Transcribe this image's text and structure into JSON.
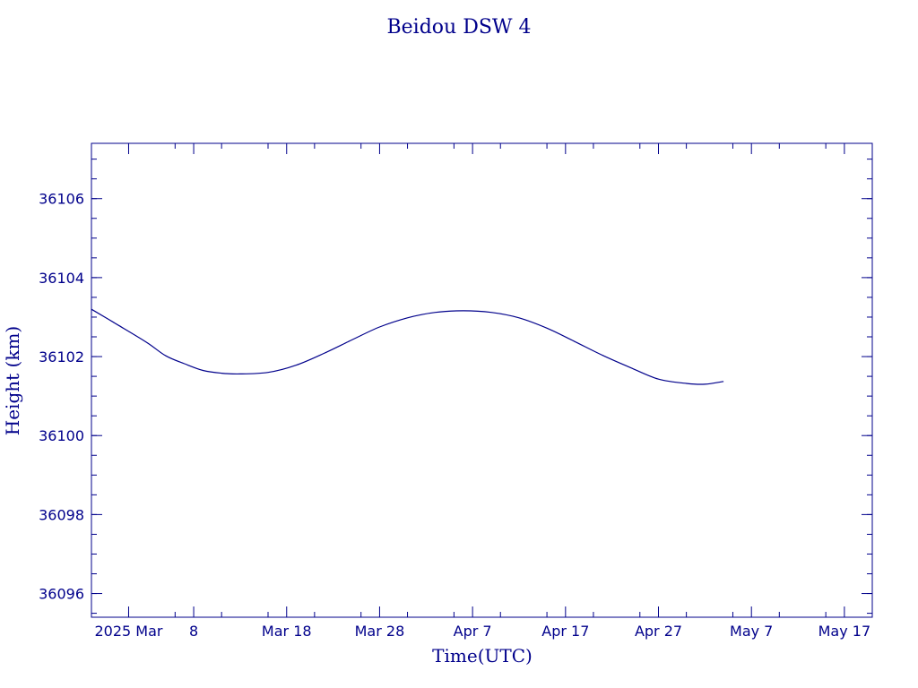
{
  "colors": {
    "ink": "#00008b",
    "background": "#ffffff"
  },
  "chart_data": {
    "type": "line",
    "title": "Beidou DSW 4",
    "xlabel": "Time(UTC)",
    "ylabel": "Height (km)",
    "xlim": [
      "2025-02-25",
      "2025-05-20"
    ],
    "ylim": [
      36095.4,
      36107.4
    ],
    "grid": false,
    "x_ticks": [
      {
        "date": "2025-03-01",
        "label": "2025 Mar"
      },
      {
        "date": "2025-03-08",
        "label": "8"
      },
      {
        "date": "2025-03-18",
        "label": "Mar 18"
      },
      {
        "date": "2025-03-28",
        "label": "Mar 28"
      },
      {
        "date": "2025-04-07",
        "label": "Apr  7"
      },
      {
        "date": "2025-04-17",
        "label": "Apr 17"
      },
      {
        "date": "2025-04-27",
        "label": "Apr 27"
      },
      {
        "date": "2025-05-07",
        "label": "May  7"
      },
      {
        "date": "2025-05-17",
        "label": "May 17"
      }
    ],
    "y_ticks": [
      36096,
      36098,
      36100,
      36102,
      36104,
      36106
    ],
    "series": [
      {
        "x": [
          "2025-02-25",
          "2025-02-28",
          "2025-03-03",
          "2025-03-05",
          "2025-03-07",
          "2025-03-09",
          "2025-03-11",
          "2025-03-13",
          "2025-03-16",
          "2025-03-19",
          "2025-03-22",
          "2025-03-25",
          "2025-03-28",
          "2025-03-31",
          "2025-04-03",
          "2025-04-06",
          "2025-04-09",
          "2025-04-12",
          "2025-04-15",
          "2025-04-18",
          "2025-04-21",
          "2025-04-24",
          "2025-04-27",
          "2025-04-30",
          "2025-05-02",
          "2025-05-04"
        ],
        "values": [
          36103.2,
          36102.78,
          36102.35,
          36102.02,
          36101.82,
          36101.65,
          36101.58,
          36101.56,
          36101.6,
          36101.78,
          36102.08,
          36102.42,
          36102.75,
          36102.98,
          36103.12,
          36103.16,
          36103.12,
          36102.98,
          36102.72,
          36102.38,
          36102.03,
          36101.72,
          36101.43,
          36101.32,
          36101.3,
          36101.37
        ]
      }
    ]
  }
}
